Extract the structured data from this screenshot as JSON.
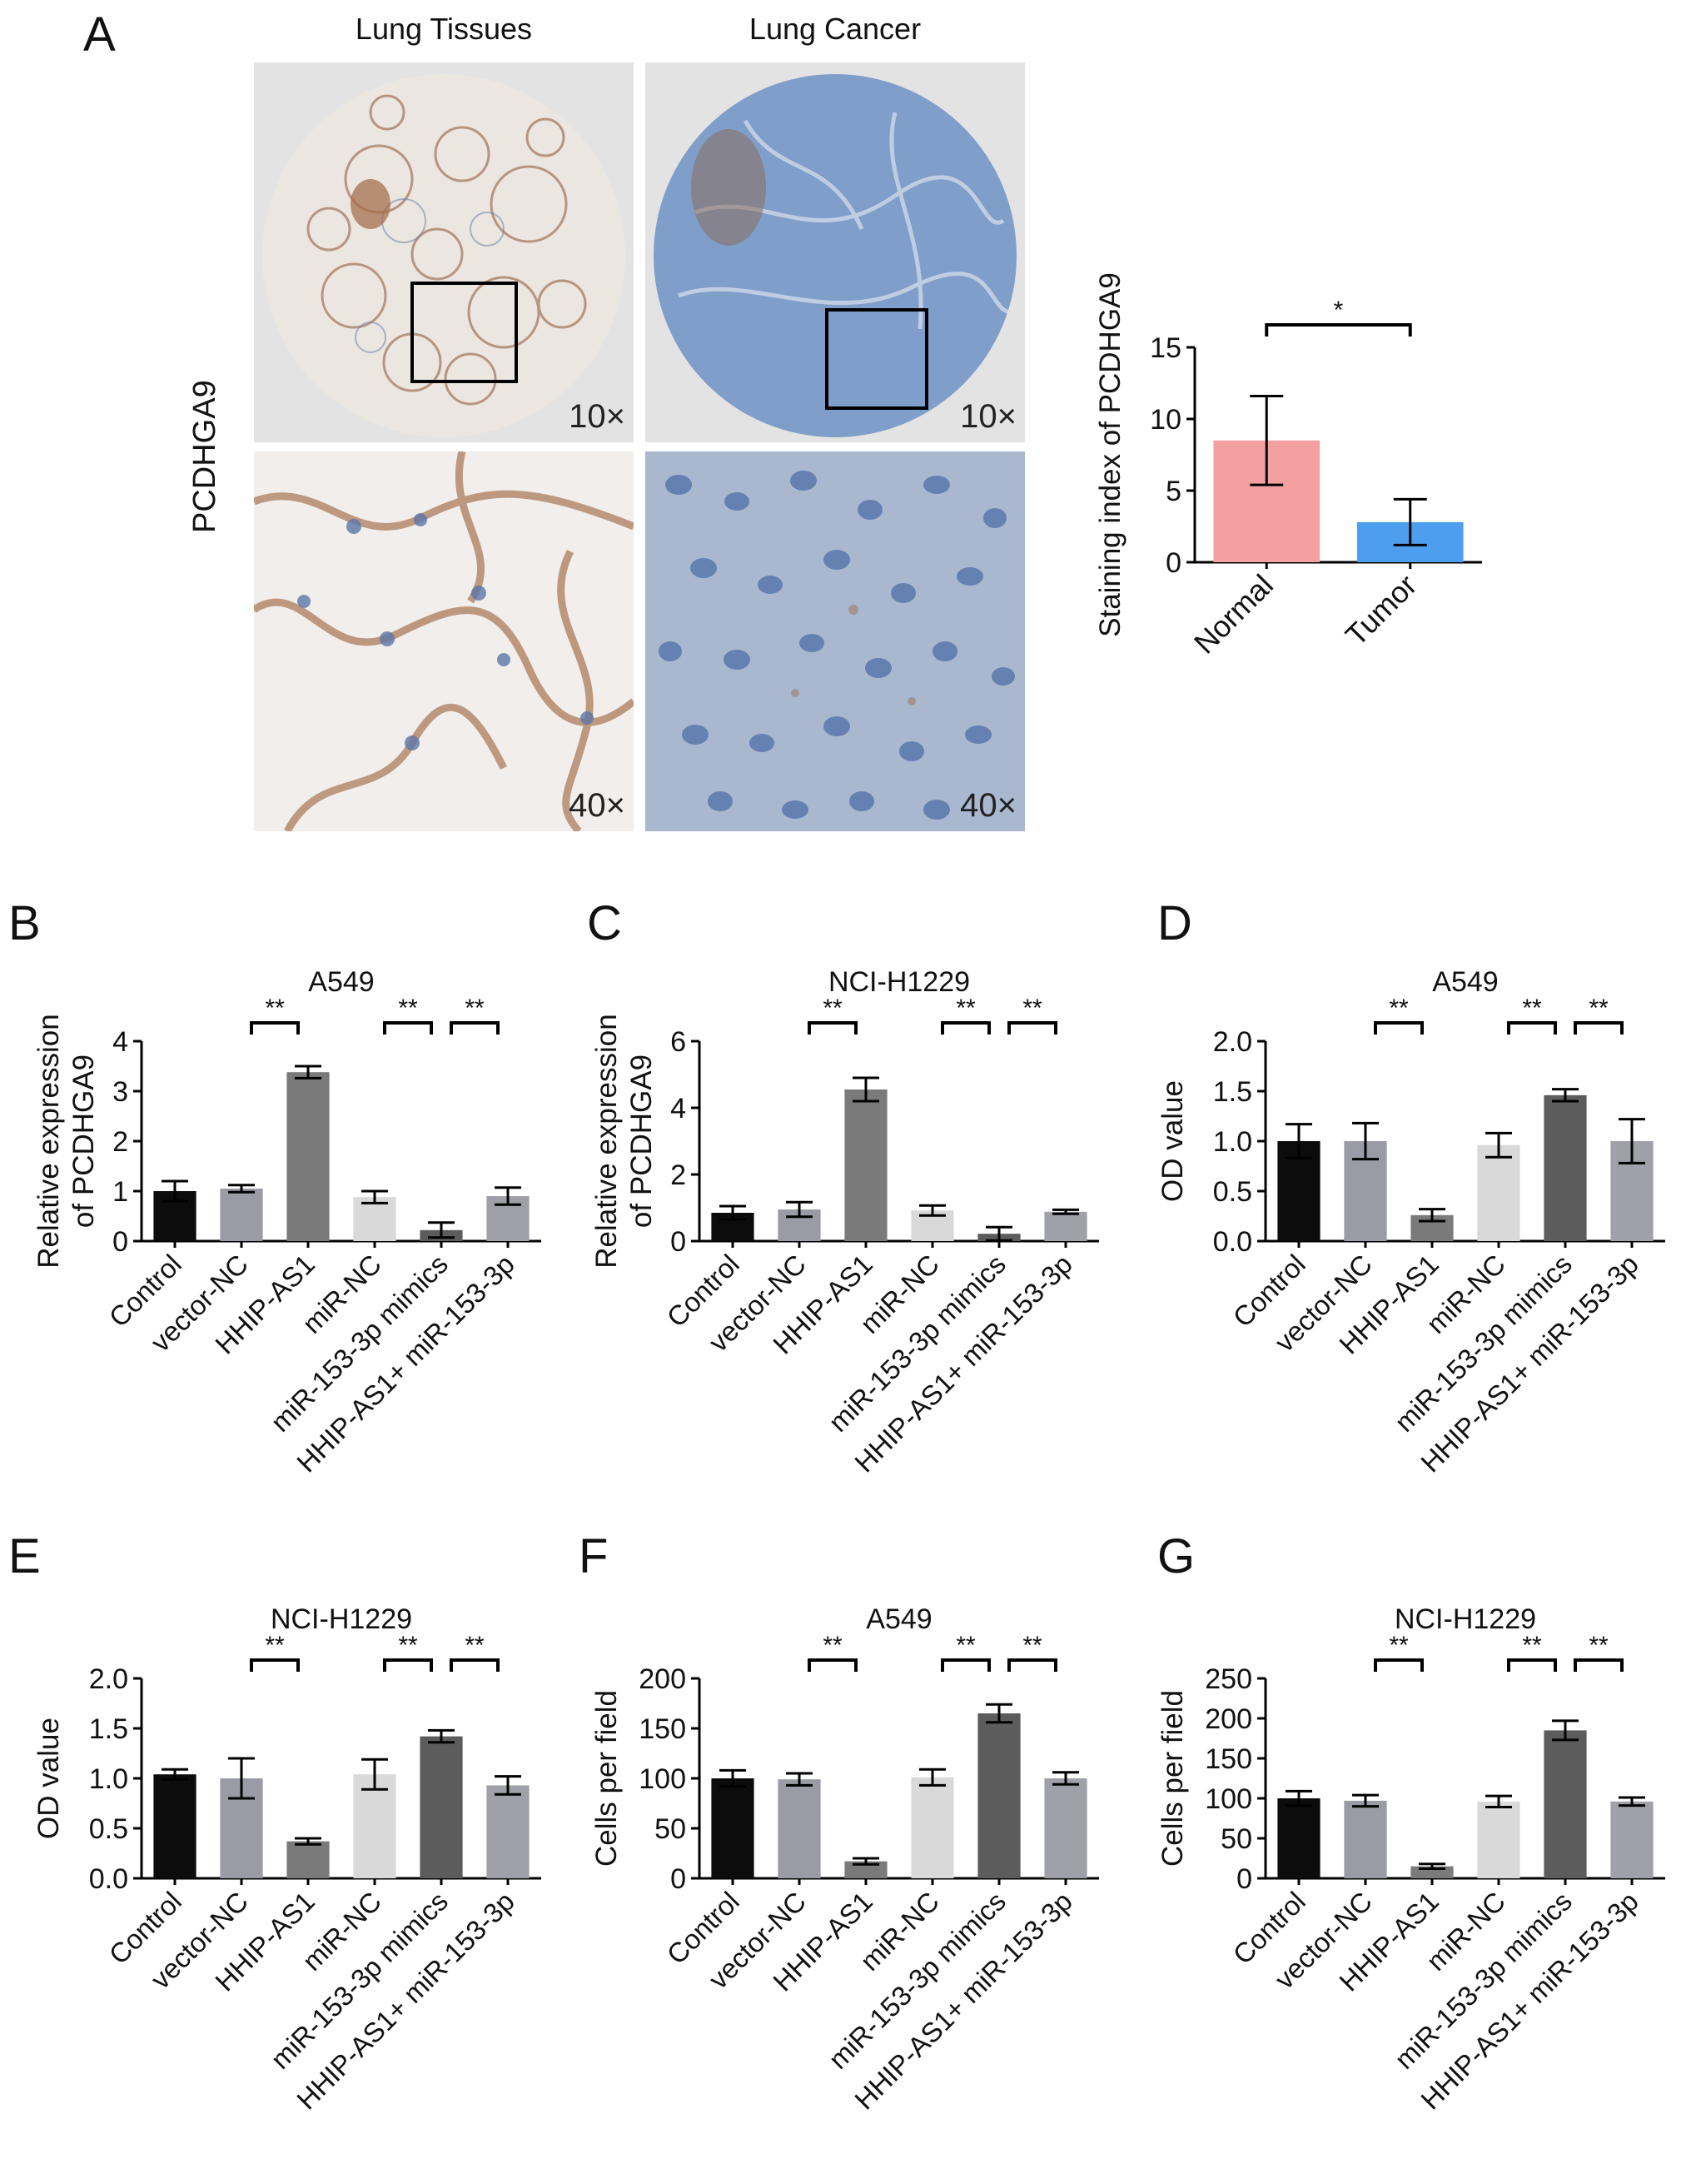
{
  "panel_letters": [
    "A",
    "B",
    "C",
    "D",
    "E",
    "F",
    "G"
  ],
  "panel_a": {
    "columns": [
      "Lung Tissues",
      "Lung Cancer"
    ],
    "row_label": "PCDHGA9",
    "magnifications": [
      "10×",
      "10×",
      "40×",
      "40×"
    ]
  },
  "chart_data": [
    {
      "id": "A-bar",
      "type": "bar",
      "categories": [
        "Normal",
        "Tumor"
      ],
      "values": [
        8.5,
        2.8
      ],
      "errors": [
        3.1,
        1.6
      ],
      "colors": [
        "#f5a0a0",
        "#4e9ef0"
      ],
      "ylabel": "Staining index of PCDHGA9",
      "ylim": [
        0,
        15
      ],
      "yticks": [
        "0",
        "5",
        "10",
        "15"
      ],
      "significance": [
        {
          "from": 0,
          "to": 1,
          "label": "*"
        }
      ]
    },
    {
      "id": "B",
      "type": "bar",
      "title": "A549",
      "categories": [
        "Control",
        "vector-NC",
        "HHIP-AS1",
        "miR-NC",
        "miR-153-3p mimics",
        "HHIP-AS1+ miR-153-3p"
      ],
      "values": [
        1.0,
        1.05,
        3.38,
        0.88,
        0.22,
        0.9
      ],
      "errors": [
        0.2,
        0.07,
        0.12,
        0.12,
        0.15,
        0.17
      ],
      "ylabel": [
        "Relative expression",
        "of PCDHGA9"
      ],
      "ylim": [
        0,
        4
      ],
      "yticks": [
        "0",
        "1",
        "2",
        "3",
        "4"
      ],
      "significance": [
        {
          "from": 1,
          "to": 2,
          "label": "**"
        },
        {
          "from": 3,
          "to": 4,
          "label": "**"
        },
        {
          "from": 4,
          "to": 5,
          "label": "**"
        }
      ]
    },
    {
      "id": "C",
      "type": "bar",
      "title": "NCI-H1229",
      "categories": [
        "Control",
        "vector-NC",
        "HHIP-AS1",
        "miR-NC",
        "miR-153-3p mimics",
        "HHIP-AS1+ miR-153-3p"
      ],
      "values": [
        0.85,
        0.95,
        4.55,
        0.92,
        0.22,
        0.88
      ],
      "errors": [
        0.2,
        0.22,
        0.35,
        0.15,
        0.2,
        0.06
      ],
      "ylabel": [
        "Relative expression",
        "of PCDHGA9"
      ],
      "ylim": [
        0,
        6
      ],
      "yticks": [
        "0",
        "2",
        "4",
        "6"
      ],
      "significance": [
        {
          "from": 1,
          "to": 2,
          "label": "**"
        },
        {
          "from": 3,
          "to": 4,
          "label": "**"
        },
        {
          "from": 4,
          "to": 5,
          "label": "**"
        }
      ]
    },
    {
      "id": "D",
      "type": "bar",
      "title": "A549",
      "categories": [
        "Control",
        "vector-NC",
        "HHIP-AS1",
        "miR-NC",
        "miR-153-3p mimics",
        "HHIP-AS1+ miR-153-3p"
      ],
      "values": [
        1.0,
        1.0,
        0.26,
        0.96,
        1.46,
        1.0
      ],
      "errors": [
        0.17,
        0.18,
        0.06,
        0.12,
        0.06,
        0.22
      ],
      "ylabel": "OD value",
      "ylim": [
        0,
        2
      ],
      "yticks": [
        "0.0",
        "0.5",
        "1.0",
        "1.5",
        "2.0"
      ],
      "significance": [
        {
          "from": 1,
          "to": 2,
          "label": "**"
        },
        {
          "from": 3,
          "to": 4,
          "label": "**"
        },
        {
          "from": 4,
          "to": 5,
          "label": "**"
        }
      ]
    },
    {
      "id": "E",
      "type": "bar",
      "title": "NCI-H1229",
      "categories": [
        "Control",
        "vector-NC",
        "HHIP-AS1",
        "miR-NC",
        "miR-153-3p mimics",
        "HHIP-AS1+ miR-153-3p"
      ],
      "values": [
        1.04,
        1.0,
        0.37,
        1.04,
        1.42,
        0.93
      ],
      "errors": [
        0.05,
        0.2,
        0.03,
        0.15,
        0.06,
        0.09
      ],
      "ylabel": "OD value",
      "ylim": [
        0,
        2
      ],
      "yticks": [
        "0.0",
        "0.5",
        "1.0",
        "1.5",
        "2.0"
      ],
      "significance": [
        {
          "from": 1,
          "to": 2,
          "label": "**"
        },
        {
          "from": 3,
          "to": 4,
          "label": "**"
        },
        {
          "from": 4,
          "to": 5,
          "label": "**"
        }
      ]
    },
    {
      "id": "F",
      "type": "bar",
      "title": "A549",
      "categories": [
        "Control",
        "vector-NC",
        "HHIP-AS1",
        "miR-NC",
        "miR-153-3p mimics",
        "HHIP-AS1+ miR-153-3p"
      ],
      "values": [
        100,
        99,
        17,
        101,
        165,
        100
      ],
      "errors": [
        8,
        6,
        3,
        8,
        9,
        6
      ],
      "ylabel": "Cells per field",
      "ylim": [
        0,
        200
      ],
      "yticks": [
        "0",
        "50",
        "100",
        "150",
        "200"
      ],
      "significance": [
        {
          "from": 1,
          "to": 2,
          "label": "**"
        },
        {
          "from": 3,
          "to": 4,
          "label": "**"
        },
        {
          "from": 4,
          "to": 5,
          "label": "**"
        }
      ]
    },
    {
      "id": "G",
      "type": "bar",
      "title": "NCI-H1229",
      "categories": [
        "Control",
        "vector-NC",
        "HHIP-AS1",
        "miR-NC",
        "miR-153-3p mimics",
        "HHIP-AS1+ miR-153-3p"
      ],
      "values": [
        100,
        97,
        15,
        96,
        185,
        96
      ],
      "errors": [
        9,
        7,
        3,
        7,
        12,
        5
      ],
      "ylabel": "Cells per field",
      "ylim": [
        0,
        250
      ],
      "yticks": [
        "0",
        "50",
        "100",
        "150",
        "200",
        "250"
      ],
      "significance": [
        {
          "from": 1,
          "to": 2,
          "label": "**"
        },
        {
          "from": 3,
          "to": 4,
          "label": "**"
        },
        {
          "from": 4,
          "to": 5,
          "label": "**"
        }
      ]
    }
  ],
  "bar_palette": [
    "#0c0c0c",
    "#9a9ba4",
    "#7a7a7a",
    "#d9d9d9",
    "#5c5c5c",
    "#9fa0a8"
  ]
}
